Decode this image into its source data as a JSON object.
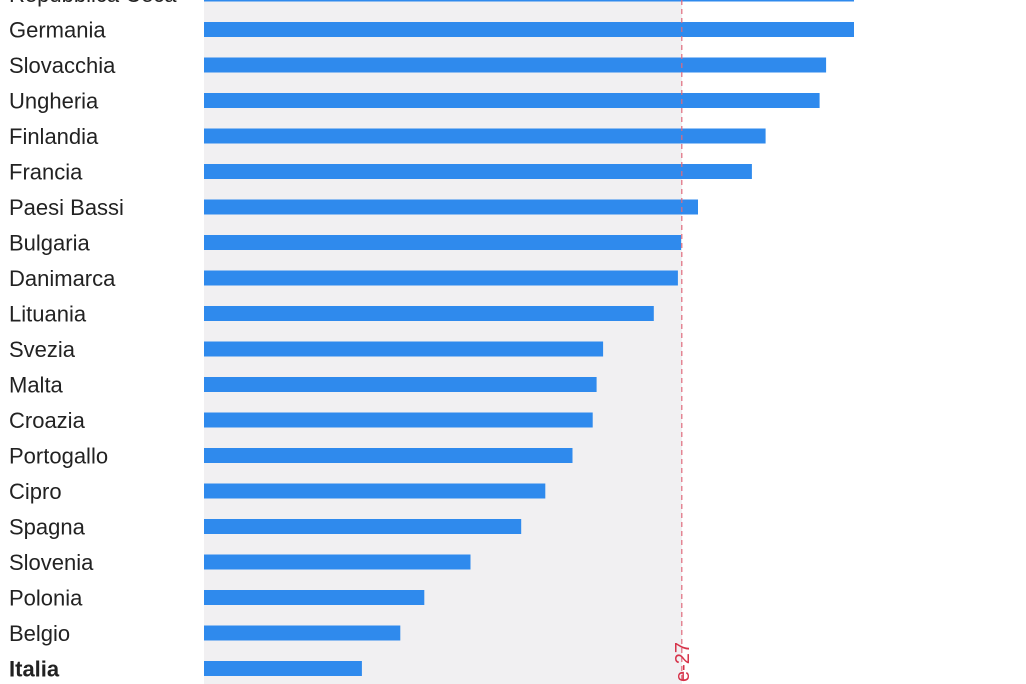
{
  "chart_data": {
    "type": "bar",
    "orientation": "horizontal",
    "categories": [
      "Repubblica Ceca",
      "Germania",
      "Slovacchia",
      "Ungheria",
      "Finlandia",
      "Francia",
      "Paesi Bassi",
      "Bulgaria",
      "Danimarca",
      "Lituania",
      "Svezia",
      "Malta",
      "Croazia",
      "Portogallo",
      "Cipro",
      "Spagna",
      "Slovenia",
      "Polonia",
      "Belgio",
      "Italia"
    ],
    "values": [
      100,
      100,
      95.7,
      94.7,
      86.4,
      84.3,
      76.0,
      73.4,
      72.9,
      69.2,
      61.4,
      60.4,
      59.8,
      56.7,
      52.5,
      48.8,
      41.0,
      33.9,
      30.2,
      24.3
    ],
    "highlight": "Italia",
    "reference_line": {
      "label": "e-27",
      "value": 73.5,
      "color": "#e06b7c"
    },
    "xlim": [
      0,
      100
    ],
    "bar_color": "#2f8aed",
    "background_shade": "#f1f0f2",
    "grid": false,
    "legend": "none"
  }
}
